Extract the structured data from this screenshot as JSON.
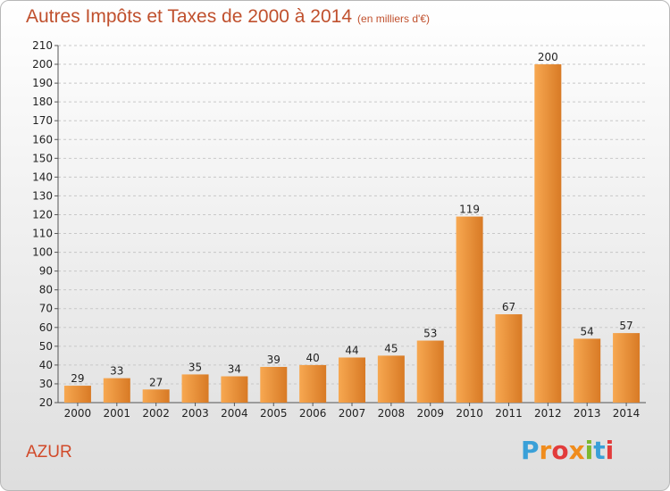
{
  "title": "Autres Impôts et Taxes de 2000 à 2014",
  "subtitle": "(en milliers d'€)",
  "commune": "AZUR",
  "logo": {
    "letters": [
      "P",
      "r",
      "o",
      "x",
      "i",
      "t",
      "i"
    ],
    "colors": [
      "#3aa0d8",
      "#f08c1c",
      "#e23b3b",
      "#f08c1c",
      "#7cb82f",
      "#3aa0d8",
      "#e23b3b"
    ]
  },
  "colors": {
    "bar_light": "#f7a851",
    "bar_dark": "#d87a25",
    "title": "#c0502d"
  },
  "chart_data": {
    "type": "bar",
    "categories": [
      "2000",
      "2001",
      "2002",
      "2003",
      "2004",
      "2005",
      "2006",
      "2007",
      "2008",
      "2009",
      "2010",
      "2011",
      "2012",
      "2013",
      "2014"
    ],
    "values": [
      29,
      33,
      27,
      35,
      34,
      39,
      40,
      44,
      45,
      53,
      119,
      67,
      200,
      54,
      57
    ],
    "title": "Autres Impôts et Taxes de 2000 à 2014",
    "subtitle": "(en milliers d'€)",
    "ylim": [
      20,
      210
    ],
    "yticks": [
      20,
      30,
      40,
      50,
      60,
      70,
      80,
      90,
      100,
      110,
      120,
      130,
      140,
      150,
      160,
      170,
      180,
      190,
      200,
      210
    ],
    "grid": "horizontal-dashed",
    "legend": "none"
  }
}
